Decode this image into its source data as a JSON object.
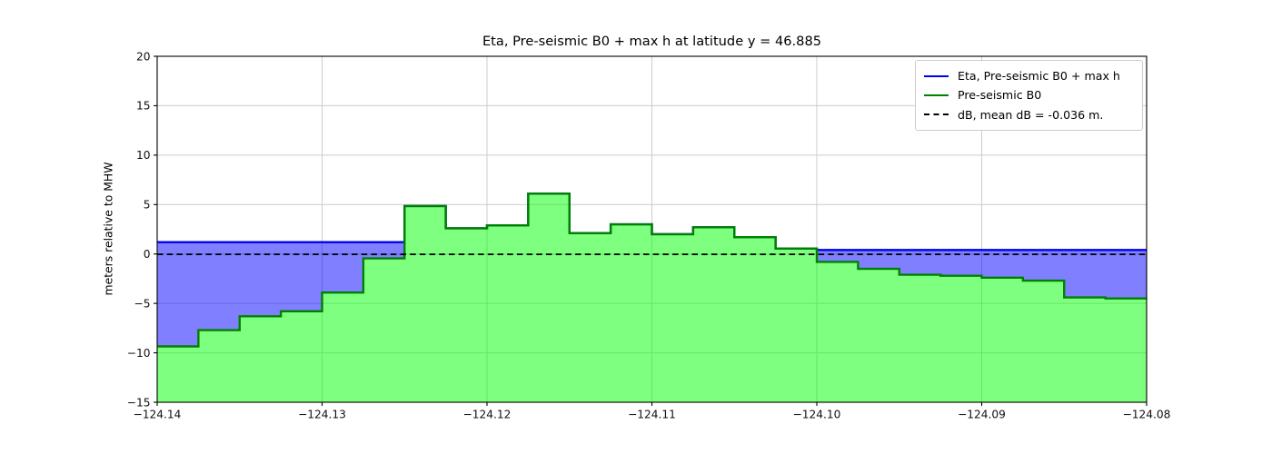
{
  "figure": {
    "background": "#ffffff"
  },
  "chart_data": {
    "type": "area",
    "title": "Eta, Pre-seismic B0 + max h at latitude y = 46.885",
    "xlabel": "",
    "ylabel": "meters relative to MHW",
    "xlim": [
      -124.14,
      -124.08
    ],
    "ylim": [
      -15,
      20
    ],
    "grid": true,
    "x_ticks": [
      -124.14,
      -124.13,
      -124.12,
      -124.11,
      -124.1,
      -124.09,
      -124.08
    ],
    "x_tick_labels": [
      "−124.14",
      "−124.13",
      "−124.12",
      "−124.11",
      "−124.10",
      "−124.09",
      "−124.08"
    ],
    "y_ticks": [
      20,
      15,
      10,
      5,
      0,
      -5,
      -10,
      -15
    ],
    "y_tick_labels": [
      "20",
      "15",
      "10",
      "5",
      "0",
      "−5",
      "−10",
      "−15"
    ],
    "x_edges": [
      -124.14,
      -124.1375,
      -124.135,
      -124.1325,
      -124.13,
      -124.1275,
      -124.125,
      -124.1225,
      -124.12,
      -124.1175,
      -124.115,
      -124.1125,
      -124.11,
      -124.1075,
      -124.105,
      -124.1025,
      -124.1,
      -124.0975,
      -124.095,
      -124.0925,
      -124.09,
      -124.0875,
      -124.085,
      -124.0825,
      -124.08
    ],
    "series": [
      {
        "name": "Eta, Pre-seismic B0 + max h",
        "type": "step-area",
        "color": "#0000ee",
        "fill": "rgba(0,0,255,0.5)",
        "values": [
          1.2,
          1.2,
          1.2,
          1.2,
          1.2,
          1.2,
          4.85,
          2.6,
          2.9,
          6.1,
          2.1,
          3.0,
          2.0,
          2.7,
          1.7,
          0.55,
          0.4,
          0.4,
          0.4,
          0.4,
          0.4,
          0.4,
          0.4,
          0.4
        ]
      },
      {
        "name": "Pre-seismic B0",
        "type": "step-area",
        "color": "#008000",
        "fill": "rgba(0,255,0,0.5)",
        "values": [
          -9.35,
          -7.7,
          -6.3,
          -5.8,
          -3.9,
          -0.45,
          4.85,
          2.6,
          2.9,
          6.1,
          2.1,
          3.0,
          2.0,
          2.7,
          1.7,
          0.55,
          -0.8,
          -1.5,
          -2.1,
          -2.2,
          -2.4,
          -2.7,
          -4.4,
          -4.5
        ]
      },
      {
        "name": "dB, mean dB = -0.036 m.",
        "type": "hline",
        "color": "#000000",
        "linestyle": "dashed",
        "value": -0.036
      }
    ],
    "legend": {
      "position": "upper right",
      "entries": [
        {
          "label": "Eta, Pre-seismic B0 + max h",
          "color": "#0000ee",
          "style": "solid"
        },
        {
          "label": "Pre-seismic B0",
          "color": "#008000",
          "style": "solid"
        },
        {
          "label": "dB, mean dB = -0.036 m.",
          "color": "#000000",
          "style": "dashed"
        }
      ]
    }
  }
}
